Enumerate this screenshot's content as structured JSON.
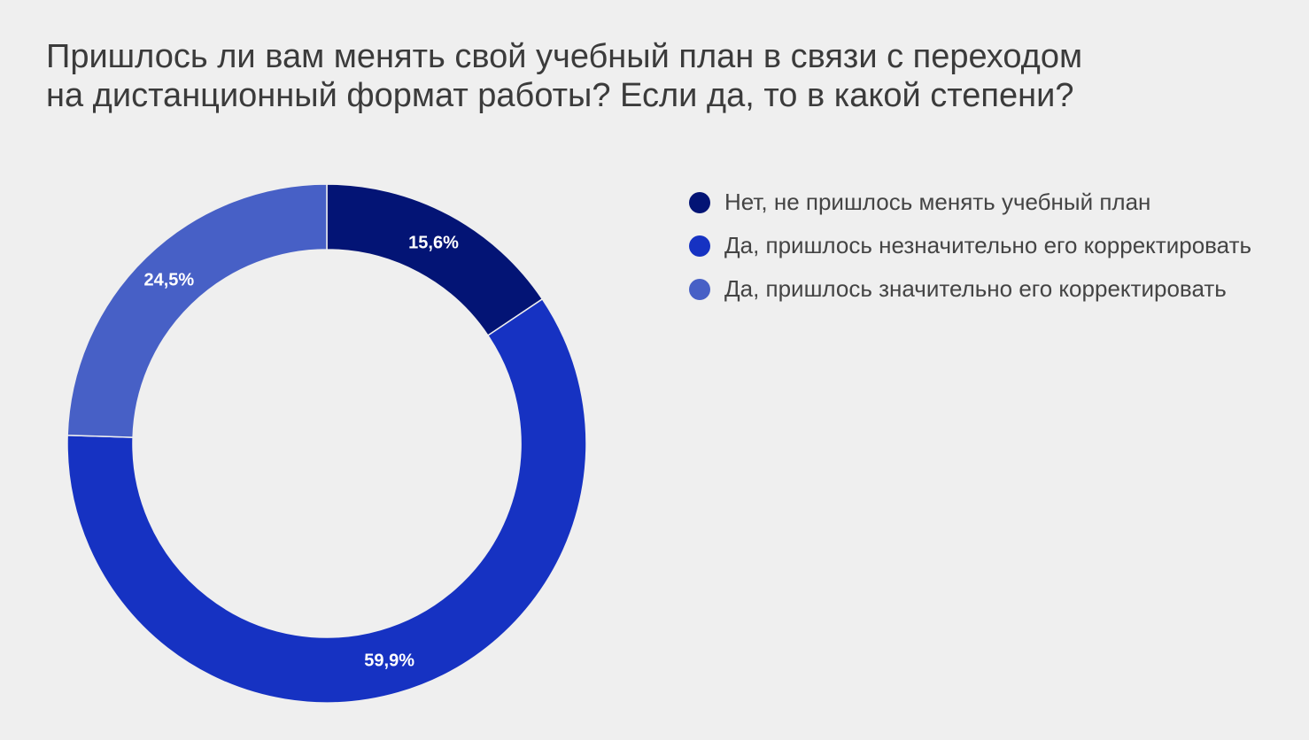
{
  "title_lines": [
    "Пришлось ли вам менять свой учебный план в связи с переходом",
    "на дистанционный формат работы? Если да, то в какой степени?"
  ],
  "chart_data": {
    "type": "pie",
    "donut": true,
    "title": "Пришлось ли вам менять свой учебный план в связи с переходом на дистанционный формат работы? Если да, то в какой степени?",
    "legend_position": "right",
    "series": [
      {
        "name": "Нет, не пришлось менять учебный план",
        "value": 15.6,
        "label": "15,6%",
        "color": "#031475"
      },
      {
        "name": "Да, пришлось незначительно его корректировать",
        "value": 59.9,
        "label": "59,9%",
        "color": "#1632c2"
      },
      {
        "name": "Да, пришлось значительно его корректировать",
        "value": 24.5,
        "label": "24,5%",
        "color": "#4760c6"
      }
    ]
  }
}
